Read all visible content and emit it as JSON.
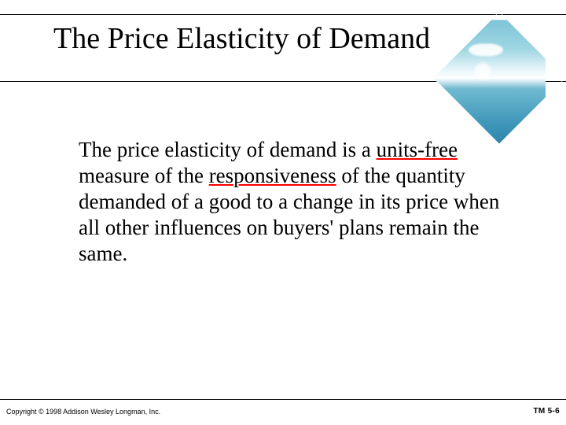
{
  "title": "The Price Elasticity of Demand",
  "body": {
    "pre1": "The price elasticity of demand is a ",
    "u1": "units-free",
    "mid1": " measure of the ",
    "u2": "responsiveness",
    "post": " of the quantity demanded of a good to a change in its price when all other influences on buyers' plans remain the same."
  },
  "footer": {
    "copyright": "Copyright © 1998 Addison Wesley Longman, Inc.",
    "pagenum": "TM 5-6"
  },
  "style": {
    "underline_color": "#ff0000",
    "text_color": "#000000",
    "background": "#ffffff",
    "title_fontsize": 38,
    "body_fontsize": 27,
    "diamond_gradient": [
      "#7fc4d8",
      "#9fd6e2",
      "#e9f6fb",
      "#ffffff",
      "#6fbad0",
      "#3c94b8",
      "#2a7ea5"
    ]
  }
}
